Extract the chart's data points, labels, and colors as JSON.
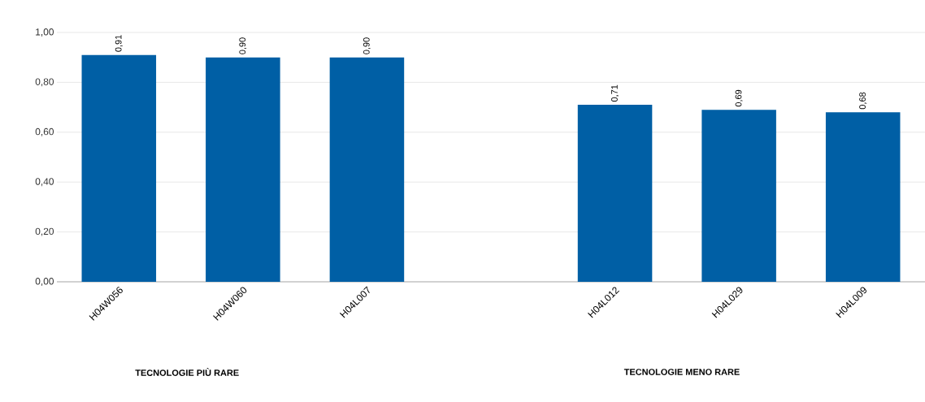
{
  "chart_data": {
    "type": "bar",
    "categories": [
      "H04W056",
      "H04W060",
      "H04L007",
      null,
      "H04L012",
      "H04L029",
      "H04L009"
    ],
    "values": [
      0.91,
      0.9,
      0.9,
      null,
      0.71,
      0.69,
      0.68
    ],
    "value_labels": [
      "0,91",
      "0,90",
      "0,90",
      null,
      "0,71",
      "0,69",
      "0,68"
    ],
    "color": "#005fa5",
    "ylim": [
      0,
      1.0
    ],
    "yticks": [
      {
        "value": 0,
        "label": "0,00"
      },
      {
        "value": 0.2,
        "label": "0,20"
      },
      {
        "value": 0.4,
        "label": "0,40"
      },
      {
        "value": 0.6,
        "label": "0,60"
      },
      {
        "value": 0.8,
        "label": "0,80"
      },
      {
        "value": 1.0,
        "label": "1,00"
      }
    ],
    "grid": "y",
    "annotations": [
      "TECNOLOGIE PIÙ RARE",
      "TECNOLOGIE MENO RARE"
    ]
  }
}
